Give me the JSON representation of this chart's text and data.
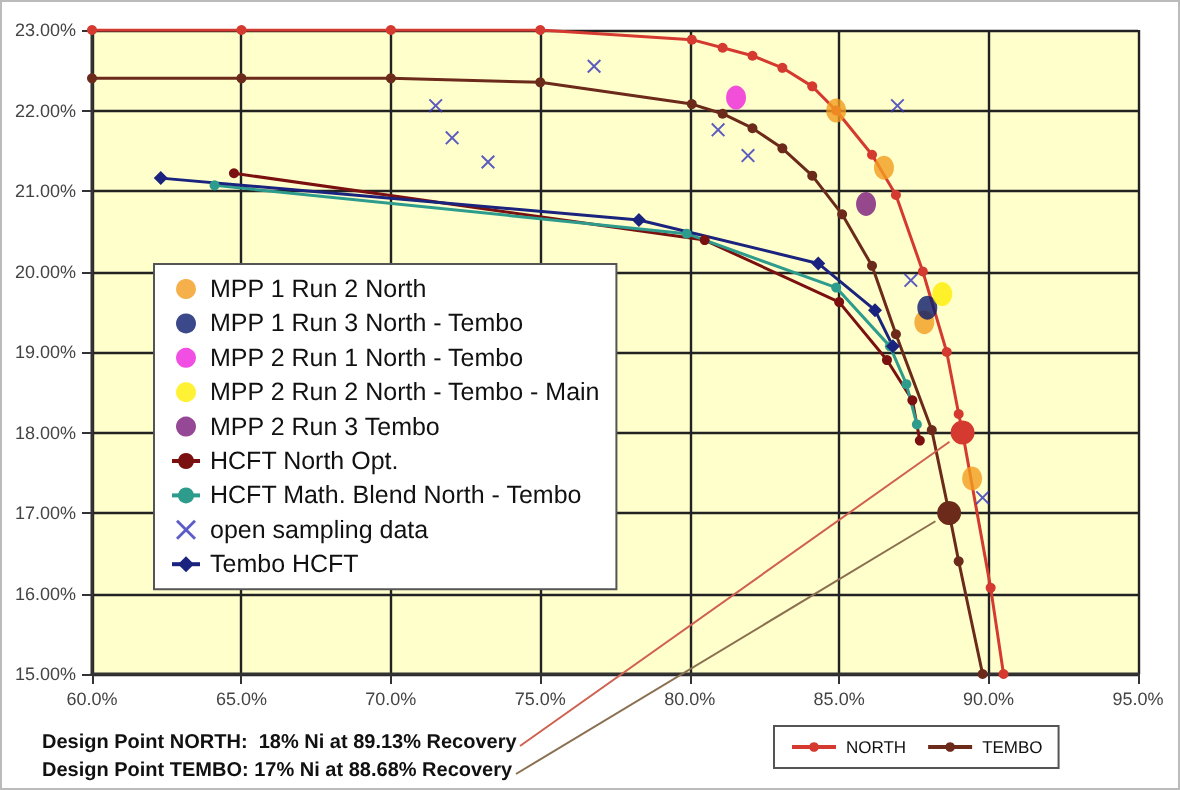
{
  "chart_data": {
    "type": "scatter",
    "xlim": [
      60,
      95
    ],
    "ylim": [
      15,
      23
    ],
    "xticks": [
      {
        "value": 60,
        "label": "60.0%"
      },
      {
        "value": 65,
        "label": "65.0%"
      },
      {
        "value": 70,
        "label": "70.0%"
      },
      {
        "value": 75,
        "label": "75.0%"
      },
      {
        "value": 80,
        "label": "80.0%"
      },
      {
        "value": 85,
        "label": "85.0%"
      },
      {
        "value": 90,
        "label": "90.0%"
      },
      {
        "value": 95,
        "label": "95.0%"
      }
    ],
    "yticks": [
      {
        "value": 15,
        "label": "15.00%"
      },
      {
        "value": 16,
        "label": "16.00%"
      },
      {
        "value": 17,
        "label": "17.00%"
      },
      {
        "value": 18,
        "label": "18.00%"
      },
      {
        "value": 19,
        "label": "19.00%"
      },
      {
        "value": 20,
        "label": "20.00%"
      },
      {
        "value": 21,
        "label": "21.00%"
      },
      {
        "value": 22,
        "label": "22.00%"
      },
      {
        "value": 23,
        "label": "23.00%"
      }
    ],
    "grid": true,
    "legend": "left",
    "series": [
      {
        "name": "MPP 1 Run 2 North",
        "marker": "circle",
        "color": "#f39c1f",
        "x": [
          84.9,
          86.5,
          87.85,
          89.45
        ],
        "values": [
          22.0,
          21.29,
          19.37,
          17.43
        ]
      },
      {
        "name": "MPP 1 Run 3 North - Tembo",
        "marker": "circle",
        "color": "#0a1a6b",
        "x": [
          87.95
        ],
        "values": [
          19.55
        ]
      },
      {
        "name": "MPP 2 Run 1 North - Tembo",
        "marker": "circle",
        "color": "#ee22dd",
        "x": [
          81.55
        ],
        "values": [
          22.16
        ]
      },
      {
        "name": "MPP 2 Run 2 North - Tembo - Main",
        "marker": "circle",
        "color": "#ffee00",
        "x": [
          88.45
        ],
        "values": [
          19.72
        ]
      },
      {
        "name": "MPP 2 Run 3 Tembo",
        "marker": "circle",
        "color": "#7a1a7a",
        "x": [
          85.9
        ],
        "values": [
          20.84
        ]
      },
      {
        "name": "HCFT North Opt.",
        "type": "line",
        "marker": "circle",
        "line_style": "solid",
        "color": "#7a1010",
        "x": [
          64.75,
          80.5,
          85.0,
          86.6,
          87.45,
          87.7
        ],
        "values": [
          21.22,
          20.39,
          19.62,
          18.9,
          18.4,
          17.9
        ]
      },
      {
        "name": "HCFT Math. Blend North - Tembo",
        "type": "line",
        "marker": "circle",
        "line_style": "solid",
        "color": "#2e9c8c",
        "x": [
          64.1,
          79.9,
          84.9,
          86.7,
          87.25,
          87.6
        ],
        "values": [
          21.07,
          20.47,
          19.8,
          19.07,
          18.6,
          18.1
        ]
      },
      {
        "name": "open sampling data",
        "marker": "cross",
        "color": "#3333bb",
        "x": [
          71.5,
          72.05,
          73.25,
          76.8,
          80.95,
          81.95,
          86.95,
          87.4,
          89.8
        ],
        "values": [
          22.06,
          21.66,
          21.36,
          22.55,
          21.76,
          21.44,
          22.06,
          19.89,
          17.19
        ]
      },
      {
        "name": "Tembo HCFT",
        "type": "line",
        "marker": "diamond",
        "line_style": "solid",
        "color": "#1a237e",
        "x": [
          62.3,
          78.3,
          84.3,
          86.2,
          86.8
        ],
        "values": [
          21.16,
          20.64,
          20.1,
          19.52,
          19.07
        ]
      },
      {
        "name": "NORTH",
        "type": "line",
        "marker": "circle",
        "line_style": "solid",
        "color": "#d43a30",
        "x": [
          60,
          65,
          70,
          75,
          80.07,
          81.1,
          82.1,
          83.1,
          84.1,
          84.9,
          86.1,
          86.9,
          87.8,
          88.6,
          89.0,
          89.13,
          90.07,
          90.5
        ],
        "values": [
          23.0,
          23.0,
          23.0,
          23.0,
          22.88,
          22.78,
          22.68,
          22.53,
          22.3,
          22.0,
          21.45,
          20.95,
          20.0,
          19.0,
          18.23,
          18.0,
          16.07,
          15.0
        ]
      },
      {
        "name": "TEMBO",
        "type": "line",
        "marker": "circle",
        "line_style": "solid",
        "color": "#6b2a1a",
        "x": [
          60,
          65,
          70,
          75,
          80.07,
          81.1,
          82.1,
          83.1,
          84.1,
          85.1,
          86.1,
          86.9,
          88.1,
          88.68,
          89.0,
          89.8
        ],
        "values": [
          22.4,
          22.4,
          22.4,
          22.35,
          22.08,
          21.96,
          21.78,
          21.53,
          21.19,
          20.71,
          20.07,
          19.22,
          18.03,
          17.0,
          16.4,
          15.0
        ]
      }
    ],
    "annotations": [
      {
        "text": "Design Point NORTH:  18% Ni at 89.13% Recovery",
        "x": 89.13,
        "y": 18
      },
      {
        "text": "Design Point TEMBO: 17% Ni at 88.68% Recovery",
        "x": 88.68,
        "y": 17
      }
    ]
  }
}
